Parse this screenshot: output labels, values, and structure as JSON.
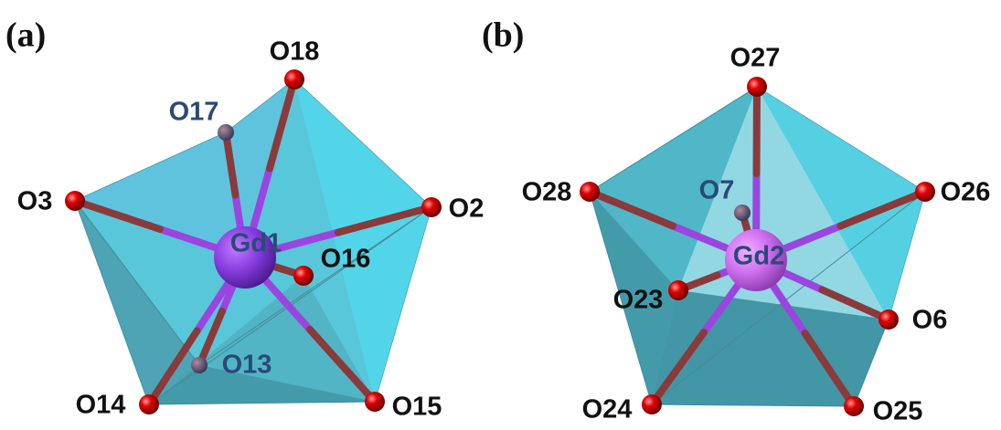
{
  "panels": [
    {
      "label": "(a)",
      "center": "Gd1",
      "ligands": [
        "O18",
        "O17",
        "O3",
        "O2",
        "O16",
        "O13",
        "O14",
        "O15"
      ]
    },
    {
      "label": "(b)",
      "center": "Gd2",
      "ligands": [
        "O27",
        "O28",
        "O26",
        "O7",
        "O23",
        "O6",
        "O24",
        "O25"
      ]
    }
  ]
}
